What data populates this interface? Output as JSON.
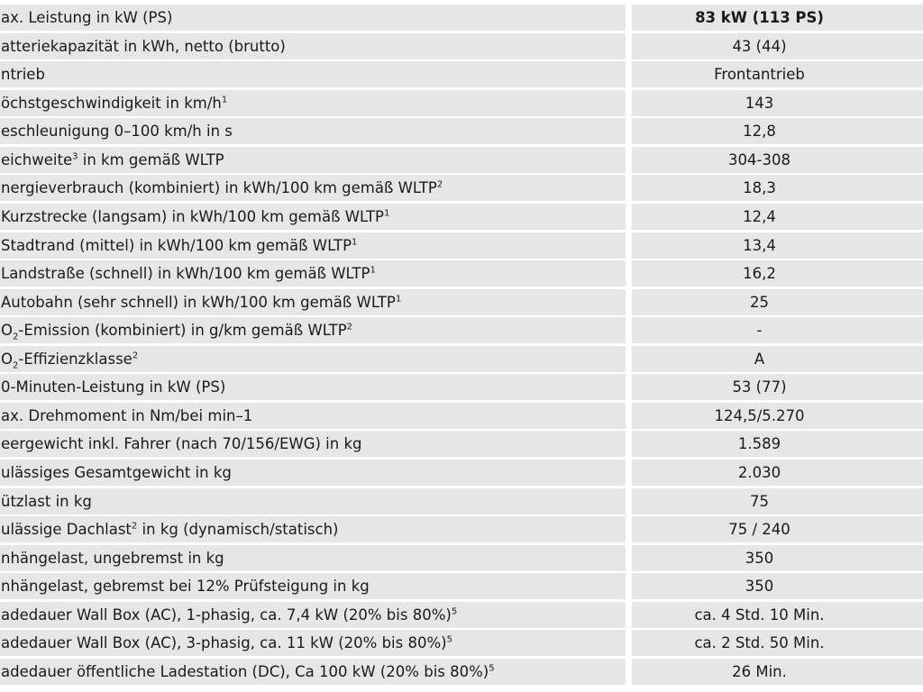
{
  "table": {
    "rows": [
      {
        "label": [
          "ax. Leistung in kW (PS)"
        ],
        "value": "83 kW (113 PS)"
      },
      {
        "label": [
          "atteriekapazität in kWh, netto (brutto)"
        ],
        "value": "43 (44)"
      },
      {
        "label": [
          "ntrieb"
        ],
        "value": "Frontantrieb"
      },
      {
        "label": [
          "öchstgeschwindigkeit in km/h",
          {
            "sup": "1"
          }
        ],
        "value": "143"
      },
      {
        "label": [
          "eschleunigung 0–100 km/h in s"
        ],
        "value": "12,8"
      },
      {
        "label": [
          "eichweite",
          {
            "sup": "3"
          },
          " in km gemäß WLTP"
        ],
        "value": "304-308"
      },
      {
        "label": [
          "nergieverbrauch (kombiniert) in kWh/100 km gemäß WLTP",
          {
            "sup": "2"
          }
        ],
        "value": "18,3"
      },
      {
        "label": [
          " Kurzstrecke (langsam) in kWh/100 km gemäß WLTP",
          {
            "sup": "1"
          }
        ],
        "value": "12,4"
      },
      {
        "label": [
          " Stadtrand (mittel) in kWh/100 km gemäß WLTP",
          {
            "sup": "1"
          }
        ],
        "value": "13,4"
      },
      {
        "label": [
          " Landstraße (schnell) in kWh/100 km gemäß WLTP",
          {
            "sup": "1"
          }
        ],
        "value": "16,2"
      },
      {
        "label": [
          " Autobahn (sehr schnell) in kWh/100 km gemäß WLTP",
          {
            "sup": "1"
          }
        ],
        "value": "25"
      },
      {
        "label": [
          "O",
          {
            "sub": "2"
          },
          "-Emission (kombiniert) in g/km gemäß WLTP",
          {
            "sup": "2"
          }
        ],
        "value": "-"
      },
      {
        "label": [
          "O",
          {
            "sub": "2"
          },
          "-Effizienzklasse",
          {
            "sup": "2"
          }
        ],
        "value": "A"
      },
      {
        "label": [
          "0-Minuten-Leistung in kW (PS)"
        ],
        "value": "53 (77)"
      },
      {
        "label": [
          "ax. Drehmoment in Nm/bei min–1"
        ],
        "value": "124,5/5.270"
      },
      {
        "label": [
          "eergewicht inkl. Fahrer (nach 70/156/EWG) in kg"
        ],
        "value": "1.589"
      },
      {
        "label": [
          "ulässiges Gesamtgewicht in kg"
        ],
        "value": "2.030"
      },
      {
        "label": [
          "ützlast in kg"
        ],
        "value": "75"
      },
      {
        "label": [
          "ulässige Dachlast",
          {
            "sup": "2"
          },
          " in kg (dynamisch/statisch)"
        ],
        "value": "75 / 240"
      },
      {
        "label": [
          "nhängelast, ungebremst in kg"
        ],
        "value": "350"
      },
      {
        "label": [
          "nhängelast, gebremst bei 12% Prüfsteigung in kg"
        ],
        "value": "350"
      },
      {
        "label": [
          "adedauer Wall Box (AC), 1-phasig, ca. 7,4 kW (20% bis 80%)",
          {
            "sup": "5"
          }
        ],
        "value": "ca. 4 Std. 10 Min."
      },
      {
        "label": [
          "adedauer Wall Box (AC), 3-phasig, ca. 11 kW (20% bis 80%)",
          {
            "sup": "5"
          }
        ],
        "value": "ca. 2 Std. 50 Min."
      },
      {
        "label": [
          "adedauer öffentliche Ladestation (DC), Ca 100 kW (20% bis 80%)",
          {
            "sup": "5"
          }
        ],
        "value": "26 Min."
      }
    ]
  }
}
